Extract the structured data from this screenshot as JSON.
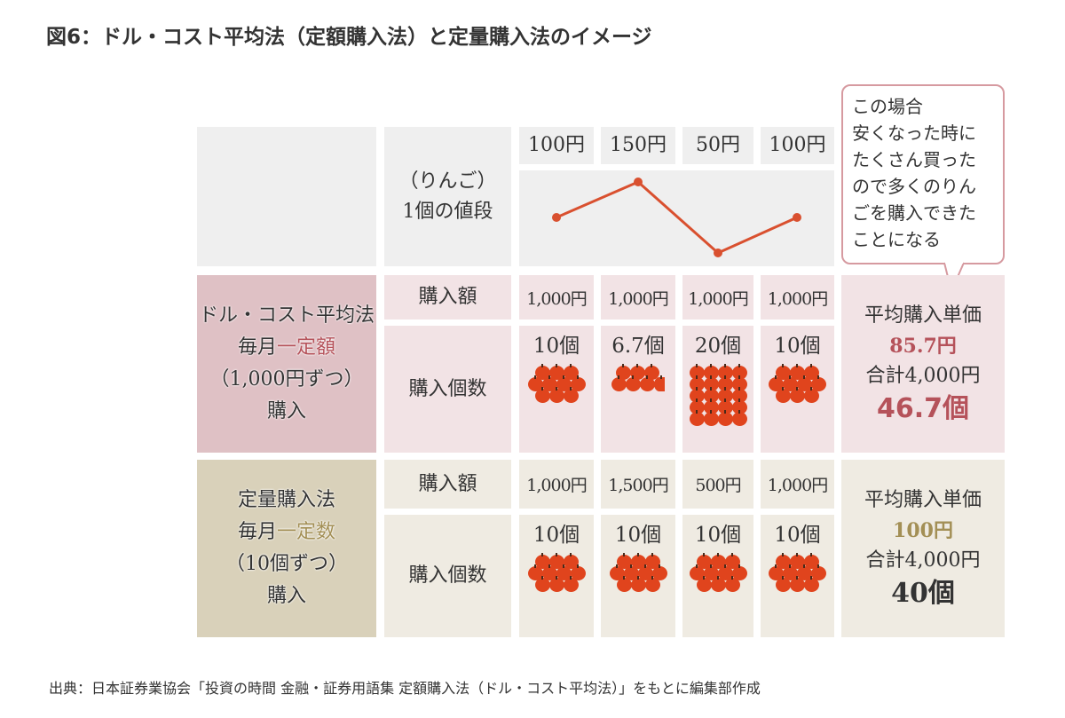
{
  "title": "図6：ドル・コスト平均法（定額購入法）と定量購入法のイメージ",
  "price_row": {
    "label": [
      "（りんご）",
      "1個の値段"
    ],
    "prices": [
      "100円",
      "150円",
      "50円",
      "100円"
    ],
    "price_values": [
      100,
      150,
      50,
      100
    ],
    "line_color": "#d9502f"
  },
  "bubble": {
    "lines": [
      "この場合",
      "安くなった時に",
      "たくさん買った",
      "ので多くのりん",
      "ごを購入できた",
      "ことになる"
    ]
  },
  "dollar_cost": {
    "header": [
      "ドル・コスト平均法",
      "毎月",
      "一定額",
      "（1,000円ずつ）",
      "購入"
    ],
    "amount_label": "購入額",
    "amounts": [
      "1,000円",
      "1,000円",
      "1,000円",
      "1,000円"
    ],
    "count_label": "購入個数",
    "counts": [
      "10個",
      "6.7個",
      "20個",
      "10個"
    ],
    "count_values": [
      10,
      6.7,
      20,
      10
    ],
    "summary": {
      "label": "平均購入単価",
      "avg": "85.7円",
      "total": "合計4,000円",
      "qty": "46.7個"
    },
    "color": "#dfc1c5"
  },
  "fixed_qty": {
    "header": [
      "定量購入法",
      "毎月",
      "一定数",
      "（10個ずつ）",
      "購入"
    ],
    "amount_label": "購入額",
    "amounts": [
      "1,000円",
      "1,500円",
      "500円",
      "1,000円"
    ],
    "count_label": "購入個数",
    "counts": [
      "10個",
      "10個",
      "10個",
      "10個"
    ],
    "count_values": [
      10,
      10,
      10,
      10
    ],
    "summary": {
      "label": "平均購入単価",
      "avg": "100円",
      "total": "合計4,000円",
      "qty": "40個"
    },
    "color": "#d9d1ba"
  },
  "apple_color": "#e0441d",
  "footer": "出典：日本証券業協会「投資の時間 金融・証券用語集 定額購入法（ドル・コスト平均法）」をもとに編集部作成"
}
